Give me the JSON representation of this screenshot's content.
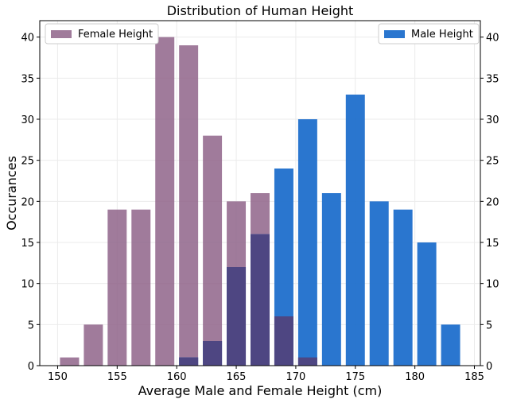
{
  "chart_data": {
    "type": "bar",
    "title": "Distribution of Human Height",
    "xlabel": "Average Male and Female Height (cm)",
    "ylabel": "Occurances",
    "xlim": [
      148.5,
      185.5
    ],
    "ylim": [
      0,
      42
    ],
    "xticks": [
      150,
      155,
      160,
      165,
      170,
      175,
      180,
      185
    ],
    "yticks": [
      0,
      5,
      10,
      15,
      20,
      25,
      30,
      35,
      40
    ],
    "grid": true,
    "bar_width": 1.6,
    "legend": [
      {
        "name": "Female Height",
        "placement": "top-left"
      },
      {
        "name": "Male Height",
        "placement": "top-right"
      }
    ],
    "series": [
      {
        "name": "Female Height",
        "color": "#8b5e85",
        "opacity": 0.82,
        "x": [
          151,
          153,
          155,
          157,
          159,
          161,
          163,
          165,
          167,
          169,
          171
        ],
        "values": [
          1,
          5,
          19,
          19,
          40,
          39,
          28,
          20,
          21,
          6,
          1
        ]
      },
      {
        "name": "Male Height",
        "color": "#1f6fcc",
        "opacity": 0.95,
        "x": [
          161,
          163,
          165,
          167,
          169,
          171,
          173,
          175,
          177,
          179,
          181,
          183
        ],
        "values": [
          1,
          3,
          12,
          16,
          24,
          30,
          21,
          33,
          20,
          19,
          15,
          5
        ]
      }
    ],
    "overlap_color": "#4e4682"
  }
}
